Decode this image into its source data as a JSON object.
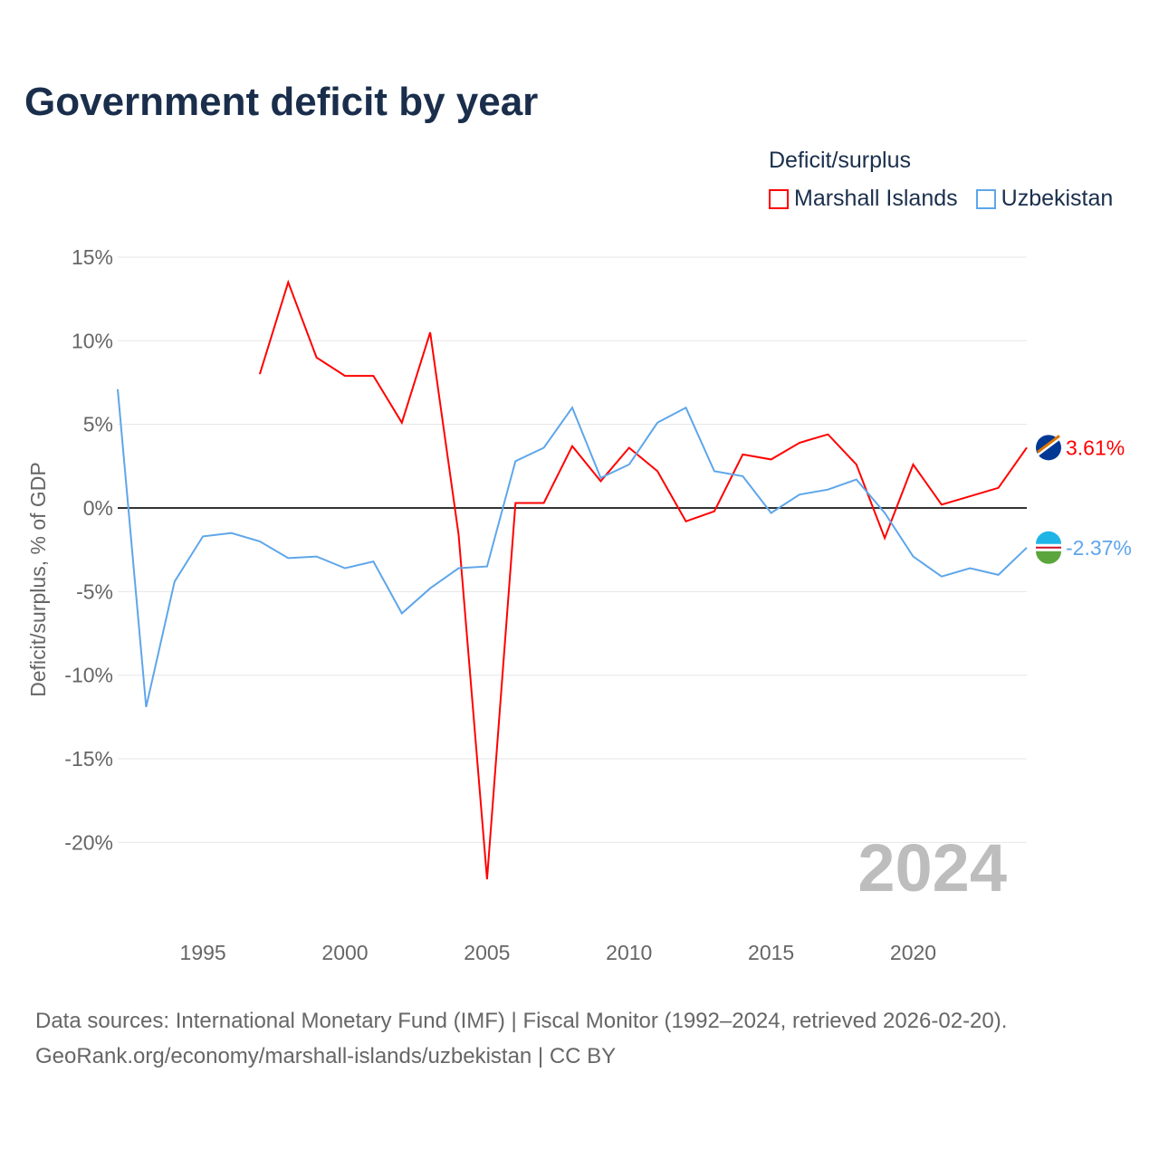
{
  "chart_data": {
    "type": "line",
    "title": "Government deficit by year",
    "xlabel": "",
    "ylabel": "Deficit/surplus, % of GDP",
    "xlim": [
      1992,
      2024
    ],
    "ylim": [
      -22.5,
      15
    ],
    "yticks": [
      15,
      10,
      5,
      0,
      -5,
      -10,
      -15,
      -20
    ],
    "ytick_labels": [
      "15%",
      "10%",
      "5%",
      "0%",
      "-5%",
      "-10%",
      "-15%",
      "-20%"
    ],
    "xticks": [
      1995,
      2000,
      2005,
      2010,
      2015,
      2020
    ],
    "xtick_labels": [
      "1995",
      "2000",
      "2005",
      "2010",
      "2015",
      "2020"
    ],
    "legend_title": "Deficit/surplus",
    "legend_placement": "top-right",
    "year_label": "2024",
    "grid": true,
    "series": [
      {
        "name": "Marshall Islands",
        "color": "#ff0000",
        "end_label": "3.61%",
        "x": [
          1997,
          1998,
          1999,
          2000,
          2001,
          2002,
          2003,
          2004,
          2005,
          2006,
          2007,
          2008,
          2009,
          2010,
          2011,
          2012,
          2013,
          2014,
          2015,
          2016,
          2017,
          2018,
          2019,
          2020,
          2021,
          2022,
          2023,
          2024
        ],
        "values": [
          8.0,
          13.5,
          9.0,
          7.9,
          7.9,
          5.1,
          10.5,
          -1.6,
          -22.2,
          0.3,
          0.3,
          3.7,
          1.6,
          3.6,
          2.2,
          -0.8,
          -0.2,
          3.2,
          2.9,
          3.9,
          4.4,
          2.6,
          -1.8,
          2.6,
          0.2,
          0.7,
          1.2,
          3.61
        ]
      },
      {
        "name": "Uzbekistan",
        "color": "#5ea6ea",
        "end_label": "-2.37%",
        "x": [
          1992,
          1993,
          1994,
          1995,
          1996,
          1997,
          1998,
          1999,
          2000,
          2001,
          2002,
          2003,
          2004,
          2005,
          2006,
          2007,
          2008,
          2009,
          2010,
          2011,
          2012,
          2013,
          2014,
          2015,
          2016,
          2017,
          2018,
          2019,
          2020,
          2021,
          2022,
          2023,
          2024
        ],
        "values": [
          7.1,
          -11.9,
          -4.4,
          -1.7,
          -1.5,
          -2.0,
          -3.0,
          -2.9,
          -3.6,
          -3.2,
          -6.3,
          -4.8,
          -3.6,
          -3.5,
          2.8,
          3.6,
          6.0,
          1.8,
          2.6,
          5.1,
          6.0,
          2.2,
          1.9,
          -0.3,
          0.8,
          1.1,
          1.7,
          -0.3,
          -2.9,
          -4.1,
          -3.6,
          -4.0,
          -2.37
        ]
      }
    ]
  },
  "footer": {
    "line1": "Data sources: International Monetary Fund (IMF) | Fiscal Monitor (1992–2024, retrieved 2026-02-20).",
    "line2": "GeoRank.org/economy/marshall-islands/uzbekistan | CC BY"
  }
}
